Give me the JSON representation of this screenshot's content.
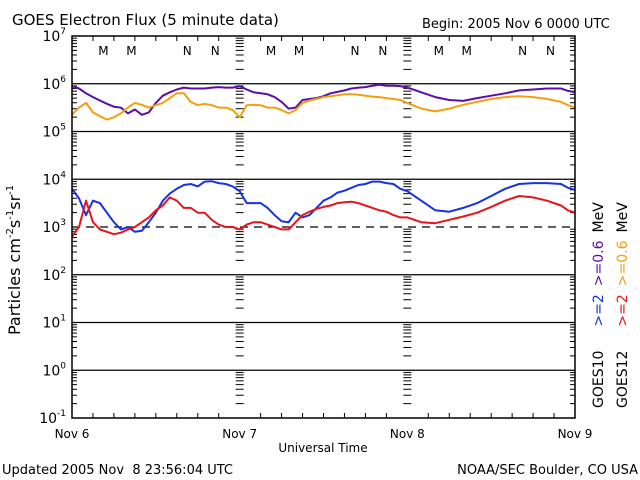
{
  "chart_data": {
    "type": "line",
    "title": "GOES Electron Flux (5 minute data)",
    "begin_label": "Begin: 2005 Nov 6 0000 UTC",
    "xlabel": "Universal Time",
    "ylabel_base": "Particles cm",
    "ylabel_parts": [
      "Particles cm",
      "-2",
      "s",
      "-1",
      "sr",
      "-1"
    ],
    "x_ticks": [
      {
        "hour": 0,
        "label": "Nov 6"
      },
      {
        "hour": 24,
        "label": "Nov 7"
      },
      {
        "hour": 48,
        "label": "Nov 8"
      },
      {
        "hour": 72,
        "label": "Nov 9"
      }
    ],
    "xlim_hours": [
      0,
      72
    ],
    "y_scale": "log",
    "ylim_log10": [
      -1,
      7
    ],
    "y_ticks": [
      {
        "base": "10",
        "exp": "7",
        "log": 7
      },
      {
        "base": "10",
        "exp": "6",
        "log": 6
      },
      {
        "base": "10",
        "exp": "5",
        "log": 5
      },
      {
        "base": "10",
        "exp": "4",
        "log": 4
      },
      {
        "base": "10",
        "exp": "3",
        "log": 3
      },
      {
        "base": "10",
        "exp": "2",
        "log": 2
      },
      {
        "base": "10",
        "exp": "1",
        "log": 1
      },
      {
        "base": "10",
        "exp": "0",
        "log": 0
      },
      {
        "base": "10",
        "exp": "-1",
        "log": -1
      }
    ],
    "threshold_line_log10": 3,
    "markers": [
      {
        "hour": 4.5,
        "label": "M",
        "color": "#e8141b"
      },
      {
        "hour": 8.5,
        "label": "M",
        "color": "#1432e8"
      },
      {
        "hour": 16.5,
        "label": "N",
        "color": "#e8141b"
      },
      {
        "hour": 20.5,
        "label": "N",
        "color": "#1432e8"
      },
      {
        "hour": 28.5,
        "label": "M",
        "color": "#e8141b"
      },
      {
        "hour": 32.5,
        "label": "M",
        "color": "#1432e8"
      },
      {
        "hour": 40.5,
        "label": "N",
        "color": "#e8141b"
      },
      {
        "hour": 44.5,
        "label": "N",
        "color": "#1432e8"
      },
      {
        "hour": 52.5,
        "label": "M",
        "color": "#e8141b"
      },
      {
        "hour": 56.5,
        "label": "M",
        "color": "#1432e8"
      },
      {
        "hour": 64.5,
        "label": "N",
        "color": "#e8141b"
      },
      {
        "hour": 68.5,
        "label": "N",
        "color": "#1432e8"
      }
    ],
    "series": [
      {
        "name": "GOES10 >=0.6 MeV",
        "color": "#5a0fa8",
        "x_hours": [
          0,
          1,
          2,
          3,
          4,
          5,
          6,
          7,
          8,
          9,
          10,
          11,
          12,
          13,
          14,
          15,
          16,
          17,
          18,
          19,
          20,
          21,
          22,
          23,
          24,
          25,
          26,
          27,
          28,
          29,
          30,
          31,
          32,
          33,
          34,
          35,
          36,
          37,
          38,
          39,
          40,
          41,
          42,
          43,
          44,
          45,
          46,
          47,
          48,
          50,
          52,
          54,
          56,
          58,
          60,
          62,
          64,
          66,
          68,
          70,
          71,
          72
        ],
        "log10": [
          5.95,
          5.9,
          5.8,
          5.72,
          5.65,
          5.58,
          5.52,
          5.5,
          5.38,
          5.46,
          5.35,
          5.4,
          5.6,
          5.75,
          5.82,
          5.88,
          5.92,
          5.9,
          5.9,
          5.9,
          5.92,
          5.93,
          5.92,
          5.92,
          5.95,
          5.88,
          5.82,
          5.8,
          5.78,
          5.72,
          5.62,
          5.48,
          5.5,
          5.66,
          5.68,
          5.7,
          5.74,
          5.8,
          5.83,
          5.86,
          5.9,
          5.92,
          5.93,
          5.96,
          5.98,
          5.96,
          5.96,
          5.95,
          5.92,
          5.82,
          5.72,
          5.66,
          5.64,
          5.7,
          5.75,
          5.8,
          5.86,
          5.88,
          5.9,
          5.9,
          5.85,
          5.82
        ]
      },
      {
        "name": "GOES12 >=0.6 MeV",
        "color": "#f0a010",
        "x_hours": [
          0,
          1,
          2,
          3,
          4,
          5,
          6,
          7,
          8,
          9,
          10,
          11,
          12,
          13,
          14,
          15,
          16,
          17,
          18,
          19,
          20,
          21,
          22,
          23,
          24,
          25,
          26,
          27,
          28,
          29,
          30,
          31,
          32,
          33,
          34,
          35,
          36,
          37,
          38,
          39,
          40,
          41,
          42,
          43,
          44,
          45,
          46,
          47,
          48,
          50,
          52,
          54,
          56,
          58,
          60,
          62,
          64,
          66,
          68,
          70,
          71,
          72
        ],
        "log10": [
          5.35,
          5.5,
          5.6,
          5.4,
          5.32,
          5.25,
          5.3,
          5.38,
          5.5,
          5.6,
          5.56,
          5.5,
          5.55,
          5.6,
          5.7,
          5.8,
          5.8,
          5.62,
          5.55,
          5.58,
          5.55,
          5.5,
          5.5,
          5.45,
          5.3,
          5.55,
          5.56,
          5.55,
          5.5,
          5.5,
          5.45,
          5.38,
          5.45,
          5.6,
          5.65,
          5.68,
          5.72,
          5.74,
          5.76,
          5.78,
          5.78,
          5.77,
          5.75,
          5.73,
          5.72,
          5.7,
          5.68,
          5.66,
          5.6,
          5.48,
          5.42,
          5.48,
          5.56,
          5.62,
          5.68,
          5.72,
          5.74,
          5.72,
          5.68,
          5.62,
          5.55,
          5.5
        ]
      },
      {
        "name": "GOES10 >=2 MeV",
        "color": "#1432e8",
        "x_hours": [
          0,
          1,
          2,
          3,
          4,
          5,
          6,
          7,
          8,
          9,
          10,
          11,
          12,
          13,
          14,
          15,
          16,
          17,
          18,
          19,
          20,
          21,
          22,
          23,
          24,
          25,
          26,
          27,
          28,
          29,
          30,
          31,
          32,
          33,
          34,
          35,
          36,
          37,
          38,
          39,
          40,
          41,
          42,
          43,
          44,
          45,
          46,
          47,
          48,
          50,
          52,
          54,
          56,
          58,
          60,
          62,
          64,
          66,
          68,
          70,
          71,
          72
        ],
        "log10": [
          3.8,
          3.6,
          3.25,
          3.55,
          3.5,
          3.3,
          3.1,
          2.95,
          3.0,
          2.9,
          2.92,
          3.1,
          3.3,
          3.55,
          3.7,
          3.8,
          3.88,
          3.9,
          3.85,
          3.95,
          3.96,
          3.92,
          3.9,
          3.85,
          3.75,
          3.5,
          3.5,
          3.5,
          3.4,
          3.25,
          3.12,
          3.1,
          3.3,
          3.2,
          3.25,
          3.4,
          3.55,
          3.62,
          3.72,
          3.76,
          3.82,
          3.88,
          3.9,
          3.95,
          3.95,
          3.92,
          3.9,
          3.8,
          3.75,
          3.55,
          3.35,
          3.32,
          3.4,
          3.5,
          3.65,
          3.8,
          3.9,
          3.92,
          3.92,
          3.9,
          3.82,
          3.78
        ]
      },
      {
        "name": "GOES12 >=2 MeV",
        "color": "#e8141b",
        "x_hours": [
          0,
          1,
          2,
          3,
          4,
          5,
          6,
          7,
          8,
          9,
          10,
          11,
          12,
          13,
          14,
          15,
          16,
          17,
          18,
          19,
          20,
          21,
          22,
          23,
          24,
          25,
          26,
          27,
          28,
          29,
          30,
          31,
          32,
          33,
          34,
          35,
          36,
          37,
          38,
          39,
          40,
          41,
          42,
          43,
          44,
          45,
          46,
          47,
          48,
          50,
          52,
          54,
          56,
          58,
          60,
          62,
          64,
          66,
          68,
          70,
          71,
          72
        ],
        "log10": [
          2.8,
          3.0,
          3.55,
          3.1,
          2.95,
          2.9,
          2.85,
          2.88,
          2.95,
          3.0,
          3.1,
          3.2,
          3.35,
          3.45,
          3.62,
          3.55,
          3.4,
          3.4,
          3.3,
          3.3,
          3.15,
          3.05,
          3.0,
          3.0,
          2.95,
          3.05,
          3.1,
          3.1,
          3.05,
          3.0,
          2.95,
          2.95,
          3.1,
          3.25,
          3.32,
          3.38,
          3.42,
          3.45,
          3.5,
          3.52,
          3.53,
          3.5,
          3.45,
          3.4,
          3.35,
          3.32,
          3.25,
          3.2,
          3.2,
          3.1,
          3.08,
          3.15,
          3.22,
          3.3,
          3.42,
          3.55,
          3.65,
          3.62,
          3.55,
          3.45,
          3.35,
          3.3
        ]
      }
    ],
    "legend": [
      {
        "text": "GOES10",
        "color": "#000000",
        "column": 1
      },
      {
        "text": ">=2",
        "color": "#1432e8",
        "column": 1
      },
      {
        "text": ">=0.6",
        "color": "#5a0fa8",
        "column": 1
      },
      {
        "text": "MeV",
        "color": "#000000",
        "column": 1
      },
      {
        "text": "GOES12",
        "color": "#000000",
        "column": 2
      },
      {
        "text": ">=2",
        "color": "#e8141b",
        "column": 2
      },
      {
        "text": ">=0.6",
        "color": "#f0a010",
        "column": 2
      },
      {
        "text": "MeV",
        "color": "#000000",
        "column": 2
      }
    ],
    "legend_placement": "right (vertical)"
  },
  "footer": {
    "updated": "Updated 2005 Nov  8 23:56:04 UTC",
    "source": "NOAA/SEC Boulder, CO USA"
  }
}
